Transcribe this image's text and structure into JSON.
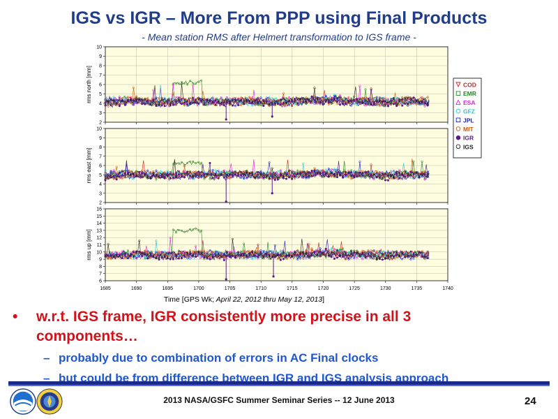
{
  "slide": {
    "title": "IGS vs IGR – More From PPP using Final Products",
    "subtitle": "-  Mean station RMS after Helmert transformation to IGS frame -",
    "bullet1": "w.r.t. IGS frame, IGR consistently more precise in all 3 components…",
    "sub1": "probably due to combination of errors in AC Final clocks",
    "sub2": "but could be from difference between IGR and IGS analysis approach",
    "footer": "2013 NASA/GSFC Summer Seminar Series -- 12 June 2013",
    "page": "24"
  },
  "chart_data": {
    "type": "line",
    "xlabel": "Time    [GPS Wk; April 22, 2012 thru May 12, 2013]",
    "xlabel_plain": "Time    [GPS Wk; ",
    "xlabel_italic": "April 22, 2012 thru May 12, 2013",
    "xlabel_end": "]",
    "x_range": [
      1685,
      1740
    ],
    "x_ticks": [
      1685,
      1690,
      1695,
      1700,
      1705,
      1710,
      1715,
      1720,
      1725,
      1730,
      1735,
      1740
    ],
    "x_data_range": [
      1685,
      1737
    ],
    "panels": [
      {
        "ylabel": "rms north [mm]",
        "ylim": [
          2,
          10
        ],
        "yticks": [
          2,
          3,
          4,
          5,
          6,
          7,
          8,
          9,
          10
        ],
        "base": 4.2,
        "outliers": [
          {
            "x": 1704.4,
            "y": 2.3
          },
          {
            "x": 1711.8,
            "y": 2.6
          }
        ]
      },
      {
        "ylabel": "rms east [mm]",
        "ylim": [
          2,
          10
        ],
        "yticks": [
          2,
          3,
          4,
          5,
          6,
          7,
          8,
          9,
          10
        ],
        "base": 5.0,
        "outliers": [
          {
            "x": 1704.4,
            "y": 2.1
          },
          {
            "x": 1711.8,
            "y": 3.0
          }
        ]
      },
      {
        "ylabel": "rms up [mm]",
        "ylim": [
          6,
          16
        ],
        "yticks": [
          6,
          7,
          8,
          9,
          10,
          11,
          12,
          13,
          14,
          15,
          16
        ],
        "base": 9.6,
        "outliers": [
          {
            "x": 1704.4,
            "y": 6.2
          },
          {
            "x": 1712.0,
            "y": 6.6
          }
        ]
      }
    ],
    "series": [
      {
        "name": "COD",
        "color": "#d42020",
        "marker": "triangle-down"
      },
      {
        "name": "EMR",
        "color": "#1f8a1f",
        "marker": "square"
      },
      {
        "name": "ESA",
        "color": "#e020e0",
        "marker": "triangle-up"
      },
      {
        "name": "GFZ",
        "color": "#20c8d8",
        "marker": "circle"
      },
      {
        "name": "JPL",
        "color": "#2020c8",
        "marker": "square"
      },
      {
        "name": "MIT",
        "color": "#c85a10",
        "marker": "circle"
      },
      {
        "name": "IGR",
        "color": "#5a1a8a",
        "marker": "filled-circle"
      },
      {
        "name": "IGS",
        "color": "#222222",
        "marker": "circle"
      }
    ],
    "emr_excursion": {
      "x_range": [
        1695.8,
        1700.5
      ],
      "north": 6.2,
      "east": 6.3,
      "up": 13.0
    },
    "grid": true,
    "legend_position": "right"
  }
}
